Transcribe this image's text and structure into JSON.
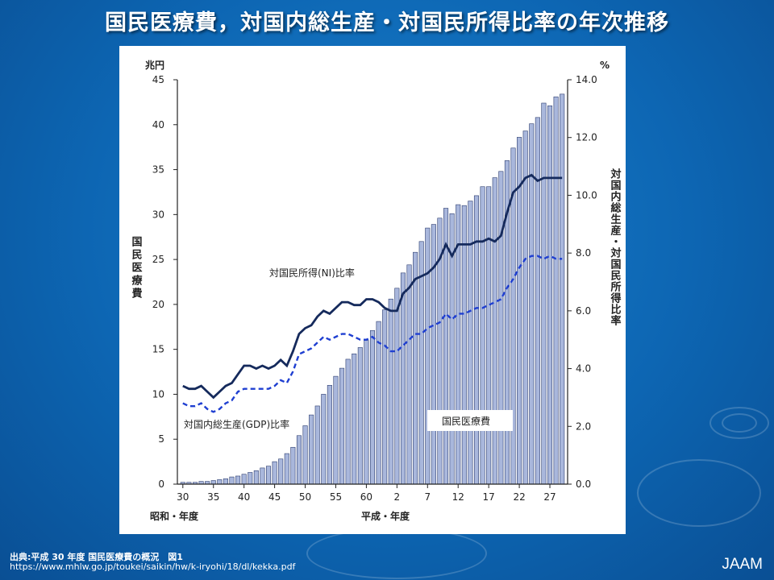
{
  "slide": {
    "title": "国民医療費，対国内総生産・対国民所得比率の年次推移",
    "source_line1": "出典:平成 30 年度 国民医療費の概況　図1",
    "source_line2": "https://www.mhlw.go.jp/toukei/saikin/hw/k-iryohi/18/dl/kekka.pdf",
    "brand": "JAAM"
  },
  "colors": {
    "background": "#0d66b3",
    "bar_fill": "#a9b7dc",
    "bar_stroke": "#2a3b6e",
    "ni_line": "#152a5c",
    "gdp_line": "#1f3fd1",
    "axis": "#222222"
  },
  "chart_data": {
    "type": "bar",
    "x_tick_labels": [
      "30",
      "35",
      "40",
      "45",
      "50",
      "55",
      "60",
      "2",
      "7",
      "12",
      "17",
      "22",
      "27"
    ],
    "x_tick_indices": [
      0,
      5,
      10,
      15,
      20,
      25,
      30,
      35,
      40,
      45,
      50,
      55,
      60
    ],
    "xlabel_left": "昭和・年度",
    "xlabel_center": "平成・年度",
    "left_axis": {
      "unit": "兆円",
      "label": "国民医療費",
      "ylim": [
        0,
        45
      ],
      "ticks": [
        0,
        5,
        10,
        15,
        20,
        25,
        30,
        35,
        40,
        45
      ]
    },
    "right_axis": {
      "unit": "%",
      "label": "対国内総生産・対国民所得比率",
      "ylim": [
        0,
        14
      ],
      "ticks": [
        "0.0",
        "2.0",
        "4.0",
        "6.0",
        "8.0",
        "10.0",
        "12.0",
        "14.0"
      ]
    },
    "series": [
      {
        "name": "国民医療費",
        "axis": "left",
        "type": "bar",
        "values": [
          0.2,
          0.2,
          0.2,
          0.3,
          0.3,
          0.4,
          0.5,
          0.6,
          0.8,
          0.9,
          1.1,
          1.3,
          1.5,
          1.8,
          2.0,
          2.5,
          2.8,
          3.4,
          4.1,
          5.4,
          6.5,
          7.7,
          8.7,
          10.0,
          11.0,
          12.0,
          12.9,
          13.9,
          14.5,
          15.2,
          16.0,
          17.1,
          18.1,
          19.4,
          20.6,
          21.8,
          23.5,
          24.4,
          25.8,
          27.0,
          28.5,
          28.9,
          29.6,
          30.7,
          30.1,
          31.1,
          31.0,
          31.5,
          32.1,
          33.1,
          33.1,
          34.1,
          34.8,
          36.0,
          37.4,
          38.6,
          39.3,
          40.1,
          40.8,
          42.4,
          42.1,
          43.1,
          43.4
        ]
      },
      {
        "name": "対国民所得(NI)比率",
        "axis": "right",
        "type": "line",
        "values": [
          3.4,
          3.3,
          3.3,
          3.4,
          3.2,
          3.0,
          3.2,
          3.4,
          3.5,
          3.8,
          4.1,
          4.1,
          4.0,
          4.1,
          4.0,
          4.1,
          4.3,
          4.1,
          4.6,
          5.2,
          5.4,
          5.5,
          5.8,
          6.0,
          5.9,
          6.1,
          6.3,
          6.3,
          6.2,
          6.2,
          6.4,
          6.4,
          6.3,
          6.1,
          6.0,
          6.0,
          6.6,
          6.8,
          7.1,
          7.2,
          7.3,
          7.5,
          7.8,
          8.3,
          7.9,
          8.3,
          8.3,
          8.3,
          8.4,
          8.4,
          8.5,
          8.4,
          8.6,
          9.4,
          10.1,
          10.3,
          10.6,
          10.7,
          10.5,
          10.6,
          10.6,
          10.6,
          10.6
        ]
      },
      {
        "name": "対国内総生産(GDP)比率",
        "axis": "right",
        "type": "line",
        "values": [
          2.8,
          2.7,
          2.7,
          2.8,
          2.6,
          2.5,
          2.6,
          2.8,
          2.9,
          3.2,
          3.3,
          3.3,
          3.3,
          3.3,
          3.3,
          3.4,
          3.6,
          3.5,
          3.9,
          4.5,
          4.6,
          4.7,
          4.9,
          5.1,
          5.0,
          5.1,
          5.2,
          5.2,
          5.1,
          5.0,
          5.0,
          5.1,
          4.9,
          4.8,
          4.6,
          4.6,
          4.8,
          5.0,
          5.2,
          5.2,
          5.4,
          5.5,
          5.6,
          5.9,
          5.7,
          5.9,
          5.9,
          6.0,
          6.1,
          6.1,
          6.2,
          6.3,
          6.4,
          6.8,
          7.1,
          7.5,
          7.8,
          7.9,
          7.9,
          7.8,
          7.9,
          7.8,
          7.8
        ]
      }
    ],
    "annotations": {
      "ni_label": "対国民所得(NI)比率",
      "gdp_label": "対国内総生産(GDP)比率",
      "bar_label": "国民医療費"
    },
    "grid": false,
    "legend": "none"
  }
}
